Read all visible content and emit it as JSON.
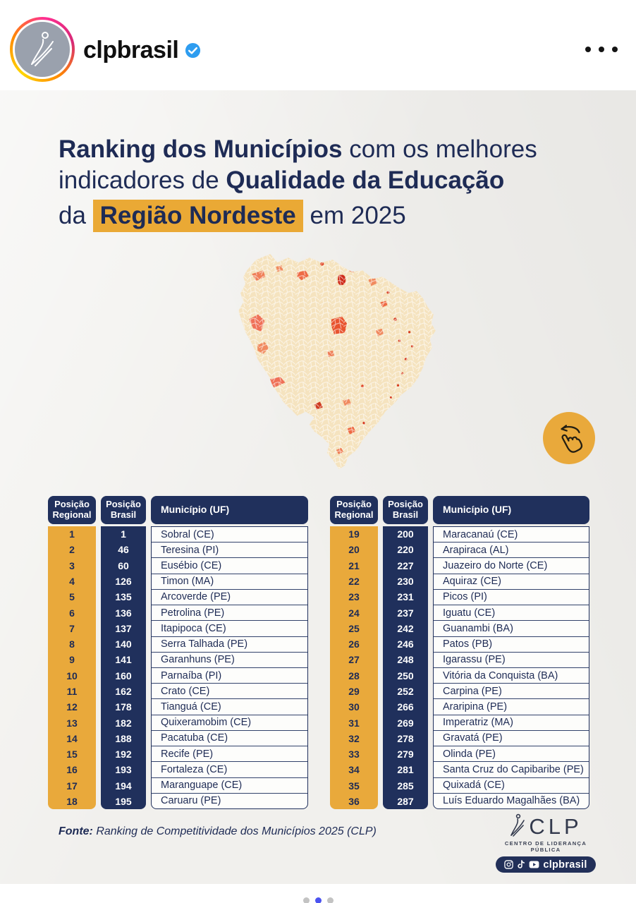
{
  "header": {
    "username": "clpbrasil",
    "verified_icon": "verified-badge",
    "more_icon": "more-options-ellipsis"
  },
  "post": {
    "title": {
      "line1_bold": "Ranking dos Municípios",
      "line1_rest": " com os melhores",
      "line2_pre": "indicadores de ",
      "line2_bold": "Qualidade da Educação",
      "line3_pre": "da ",
      "line3_hl": "Região Nordeste",
      "line3_post": " em 2025"
    },
    "map_icon": "nordeste-municipalities-choropleth-map",
    "swipe_icon": "swipe-left-hand",
    "table": {
      "headers": [
        "Posição Regional",
        "Posição Brasil",
        "Município (UF)"
      ],
      "left_rows": [
        {
          "regional": "1",
          "brasil": "1",
          "municipio": "Sobral (CE)"
        },
        {
          "regional": "2",
          "brasil": "46",
          "municipio": "Teresina (PI)"
        },
        {
          "regional": "3",
          "brasil": "60",
          "municipio": "Eusébio (CE)"
        },
        {
          "regional": "4",
          "brasil": "126",
          "municipio": "Timon (MA)"
        },
        {
          "regional": "5",
          "brasil": "135",
          "municipio": "Arcoverde (PE)"
        },
        {
          "regional": "6",
          "brasil": "136",
          "municipio": "Petrolina (PE)"
        },
        {
          "regional": "7",
          "brasil": "137",
          "municipio": "Itapipoca (CE)"
        },
        {
          "regional": "8",
          "brasil": "140",
          "municipio": "Serra Talhada (PE)"
        },
        {
          "regional": "9",
          "brasil": "141",
          "municipio": "Garanhuns (PE)"
        },
        {
          "regional": "10",
          "brasil": "160",
          "municipio": "Parnaíba (PI)"
        },
        {
          "regional": "11",
          "brasil": "162",
          "municipio": "Crato (CE)"
        },
        {
          "regional": "12",
          "brasil": "178",
          "municipio": "Tianguá (CE)"
        },
        {
          "regional": "13",
          "brasil": "182",
          "municipio": "Quixeramobim (CE)"
        },
        {
          "regional": "14",
          "brasil": "188",
          "municipio": "Pacatuba (CE)"
        },
        {
          "regional": "15",
          "brasil": "192",
          "municipio": "Recife (PE)"
        },
        {
          "regional": "16",
          "brasil": "193",
          "municipio": "Fortaleza (CE)"
        },
        {
          "regional": "17",
          "brasil": "194",
          "municipio": "Maranguape (CE)"
        },
        {
          "regional": "18",
          "brasil": "195",
          "municipio": "Caruaru (PE)"
        }
      ],
      "right_rows": [
        {
          "regional": "19",
          "brasil": "200",
          "municipio": "Maracanaú (CE)"
        },
        {
          "regional": "20",
          "brasil": "220",
          "municipio": "Arapiraca (AL)"
        },
        {
          "regional": "21",
          "brasil": "227",
          "municipio": "Juazeiro do Norte (CE)"
        },
        {
          "regional": "22",
          "brasil": "230",
          "municipio": "Aquiraz (CE)"
        },
        {
          "regional": "23",
          "brasil": "231",
          "municipio": "Picos (PI)"
        },
        {
          "regional": "24",
          "brasil": "237",
          "municipio": "Iguatu (CE)"
        },
        {
          "regional": "25",
          "brasil": "242",
          "municipio": "Guanambi (BA)"
        },
        {
          "regional": "26",
          "brasil": "246",
          "municipio": "Patos (PB)"
        },
        {
          "regional": "27",
          "brasil": "248",
          "municipio": "Igarassu (PE)"
        },
        {
          "regional": "28",
          "brasil": "250",
          "municipio": "Vitória da Conquista (BA)"
        },
        {
          "regional": "29",
          "brasil": "252",
          "municipio": "Carpina (PE)"
        },
        {
          "regional": "30",
          "brasil": "266",
          "municipio": "Araripina (PE)"
        },
        {
          "regional": "31",
          "brasil": "269",
          "municipio": "Imperatriz (MA)"
        },
        {
          "regional": "32",
          "brasil": "278",
          "municipio": "Gravatá (PE)"
        },
        {
          "regional": "33",
          "brasil": "279",
          "municipio": "Olinda (PE)"
        },
        {
          "regional": "34",
          "brasil": "281",
          "municipio": "Santa Cruz do Capibaribe (PE)"
        },
        {
          "regional": "35",
          "brasil": "285",
          "municipio": "Quixadá (CE)"
        },
        {
          "regional": "36",
          "brasil": "287",
          "municipio": "Luís Eduardo Magalhães (BA)"
        }
      ]
    },
    "source": {
      "label": "Fonte:",
      "text": " Ranking de Competitividade dos Municípios 2025 (CLP)"
    },
    "brand": {
      "name": "CLP",
      "figure_icon": "clp-leaping-figure-logo",
      "tagline": "CENTRO DE LIDERANÇA PÚBLICA",
      "social_icons": [
        "instagram-icon",
        "tiktok-icon",
        "youtube-icon"
      ],
      "handle": "clpbrasil"
    },
    "carousel": {
      "dot_count": 3,
      "active_index": 1
    }
  },
  "colors": {
    "navy": "#20305c",
    "title_navy": "#1e2b55",
    "accent_yellow": "#e9a93b",
    "highlight_yellow": "#eaa935",
    "paper": "#f1f0ed",
    "map_base": "#f5e3bf",
    "map_highlight": "#ee6a44",
    "map_highlight_dark": "#cf2b1a",
    "verified_blue": "#2e9df0",
    "active_dot_blue": "#4b53f0"
  }
}
